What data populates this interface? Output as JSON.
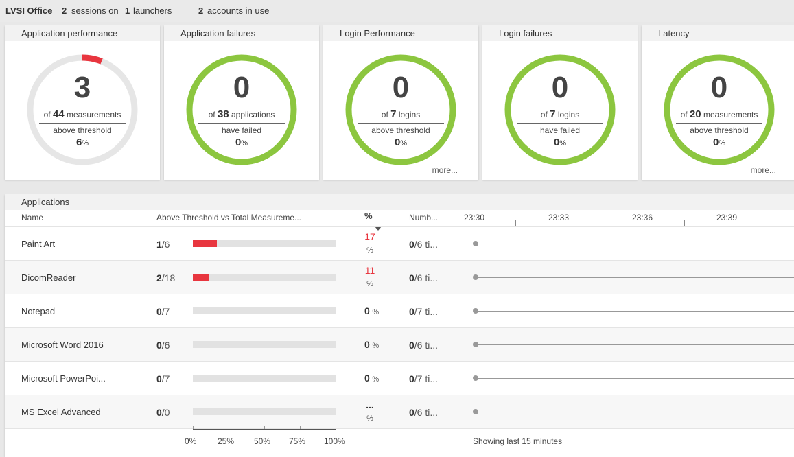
{
  "topbar": {
    "title": "LVSI Office",
    "sessions_count": "2",
    "sessions_text": "sessions on",
    "launchers_count": "1",
    "launchers_text": "launchers",
    "accounts_count": "2",
    "accounts_text": "accounts in use"
  },
  "cards": [
    {
      "title": "Application performance",
      "value": "3",
      "of_prefix": "of",
      "of_count": "44",
      "of_suffix": "measurements",
      "sub": "above threshold",
      "pct": "6",
      "pct_sign": "%",
      "gauge_fraction": 0.06,
      "more": ""
    },
    {
      "title": "Application failures",
      "value": "0",
      "of_prefix": "of",
      "of_count": "38",
      "of_suffix": "applications",
      "sub": "have failed",
      "pct": "0",
      "pct_sign": "%",
      "gauge_fraction": 0,
      "more": ""
    },
    {
      "title": "Login Performance",
      "value": "0",
      "of_prefix": "of",
      "of_count": "7",
      "of_suffix": "logins",
      "sub": "above threshold",
      "pct": "0",
      "pct_sign": "%",
      "gauge_fraction": 0,
      "more": "more..."
    },
    {
      "title": "Login failures",
      "value": "0",
      "of_prefix": "of",
      "of_count": "7",
      "of_suffix": "logins",
      "sub": "have failed",
      "pct": "0",
      "pct_sign": "%",
      "gauge_fraction": 0,
      "more": ""
    },
    {
      "title": "Latency",
      "value": "0",
      "of_prefix": "of",
      "of_count": "20",
      "of_suffix": "measurements",
      "sub": "above threshold",
      "pct": "0",
      "pct_sign": "%",
      "gauge_fraction": 0,
      "more": "more..."
    }
  ],
  "colors": {
    "ok": "#8cc63f",
    "track": "#e6e6e6",
    "fail": "#e8363f"
  },
  "applications": {
    "title": "Applications",
    "columns": {
      "name": "Name",
      "above": "Above Threshold vs Total Measureme...",
      "pct": "%",
      "numb": "Numb..."
    },
    "time_labels": [
      "23:30",
      "23:33",
      "23:36",
      "23:39"
    ],
    "rows": [
      {
        "name": "Paint Art",
        "above": "1",
        "total": "/6",
        "fraction": 0.167,
        "pct": "17",
        "pct_sign": "%",
        "num": "0",
        "num_total": "/6 ti..."
      },
      {
        "name": "DicomReader",
        "above": "2",
        "total": "/18",
        "fraction": 0.111,
        "pct": "11",
        "pct_sign": "%",
        "num": "0",
        "num_total": "/6 ti..."
      },
      {
        "name": "Notepad",
        "above": "0",
        "total": "/7",
        "fraction": 0,
        "pct": "0",
        "pct_sign": "%",
        "num": "0",
        "num_total": "/7 ti..."
      },
      {
        "name": "Microsoft Word 2016",
        "above": "0",
        "total": "/6",
        "fraction": 0,
        "pct": "0",
        "pct_sign": "%",
        "num": "0",
        "num_total": "/6 ti..."
      },
      {
        "name": "Microsoft PowerPoi...",
        "above": "0",
        "total": "/7",
        "fraction": 0,
        "pct": "0",
        "pct_sign": "%",
        "num": "0",
        "num_total": "/7 ti..."
      },
      {
        "name": "MS Excel Advanced",
        "above": "0",
        "total": "/0",
        "fraction": 0,
        "pct": "...",
        "pct_sign": "%",
        "num": "0",
        "num_total": "/6 ti..."
      }
    ],
    "axis_labels": [
      "0%",
      "25%",
      "50%",
      "75%",
      "100%"
    ],
    "footer": "Showing last 15 minutes"
  }
}
